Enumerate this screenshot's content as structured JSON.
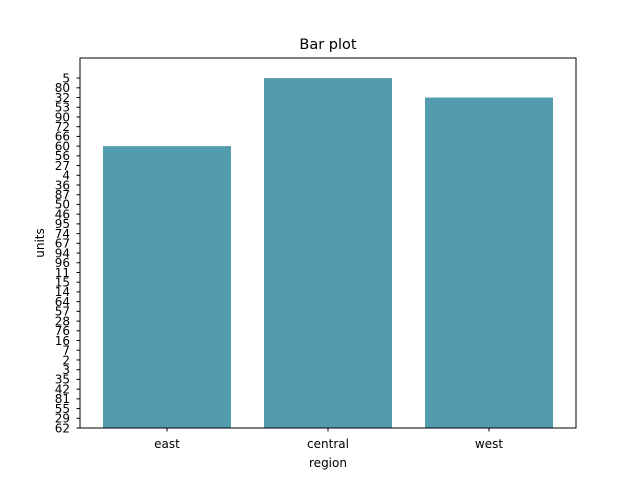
{
  "chart_data": {
    "type": "bar",
    "title": "Bar plot",
    "xlabel": "region",
    "ylabel": "units",
    "categories": [
      "east",
      "central",
      "west"
    ],
    "values": [
      "60",
      "5",
      "32"
    ],
    "y_categories": [
      "62",
      "29",
      "55",
      "81",
      "42",
      "35",
      "3",
      "2",
      "7",
      "16",
      "76",
      "28",
      "57",
      "64",
      "14",
      "15",
      "11",
      "96",
      "94",
      "67",
      "74",
      "95",
      "46",
      "50",
      "87",
      "36",
      "4",
      "27",
      "56",
      "60",
      "66",
      "72",
      "90",
      "53",
      "32",
      "80",
      "5"
    ],
    "y_axis_note": "categorical y-axis; bar values refer to tick labels",
    "grid": false,
    "legend": "none",
    "bar_color": "#539caf"
  }
}
